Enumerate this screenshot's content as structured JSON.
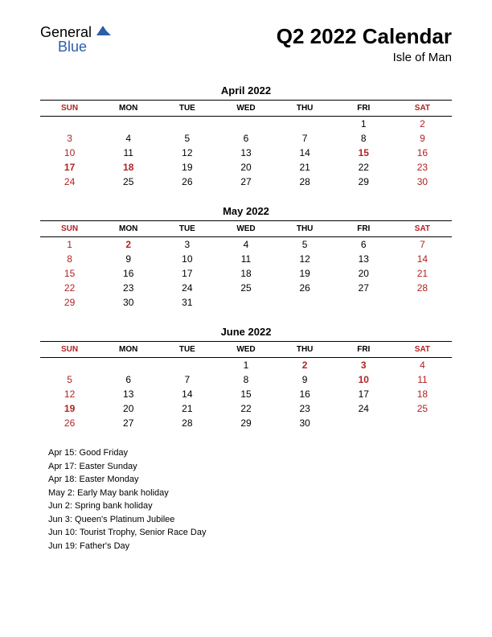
{
  "logo": {
    "general": "General",
    "blue": "Blue"
  },
  "title": "Q2 2022 Calendar",
  "subtitle": "Isle of Man",
  "day_headers": [
    "SUN",
    "MON",
    "TUE",
    "WED",
    "THU",
    "FRI",
    "SAT"
  ],
  "weekend_cols": [
    0,
    6
  ],
  "colors": {
    "weekend": "#b22222",
    "holiday": "#b22222",
    "text": "#000000",
    "background": "#ffffff",
    "logo_general": "#555555",
    "logo_blue": "#2b5da8",
    "border": "#000000"
  },
  "months": [
    {
      "name": "April 2022",
      "weeks": [
        [
          null,
          null,
          null,
          null,
          null,
          {
            "d": 1
          },
          {
            "d": 2
          }
        ],
        [
          {
            "d": 3
          },
          {
            "d": 4
          },
          {
            "d": 5
          },
          {
            "d": 6
          },
          {
            "d": 7
          },
          {
            "d": 8
          },
          {
            "d": 9
          }
        ],
        [
          {
            "d": 10
          },
          {
            "d": 11
          },
          {
            "d": 12
          },
          {
            "d": 13
          },
          {
            "d": 14
          },
          {
            "d": 15,
            "h": true
          },
          {
            "d": 16
          }
        ],
        [
          {
            "d": 17,
            "h": true
          },
          {
            "d": 18,
            "h": true
          },
          {
            "d": 19
          },
          {
            "d": 20
          },
          {
            "d": 21
          },
          {
            "d": 22
          },
          {
            "d": 23
          }
        ],
        [
          {
            "d": 24
          },
          {
            "d": 25
          },
          {
            "d": 26
          },
          {
            "d": 27
          },
          {
            "d": 28
          },
          {
            "d": 29
          },
          {
            "d": 30
          }
        ]
      ]
    },
    {
      "name": "May 2022",
      "weeks": [
        [
          {
            "d": 1
          },
          {
            "d": 2,
            "h": true
          },
          {
            "d": 3
          },
          {
            "d": 4
          },
          {
            "d": 5
          },
          {
            "d": 6
          },
          {
            "d": 7
          }
        ],
        [
          {
            "d": 8
          },
          {
            "d": 9
          },
          {
            "d": 10
          },
          {
            "d": 11
          },
          {
            "d": 12
          },
          {
            "d": 13
          },
          {
            "d": 14
          }
        ],
        [
          {
            "d": 15
          },
          {
            "d": 16
          },
          {
            "d": 17
          },
          {
            "d": 18
          },
          {
            "d": 19
          },
          {
            "d": 20
          },
          {
            "d": 21
          }
        ],
        [
          {
            "d": 22
          },
          {
            "d": 23
          },
          {
            "d": 24
          },
          {
            "d": 25
          },
          {
            "d": 26
          },
          {
            "d": 27
          },
          {
            "d": 28
          }
        ],
        [
          {
            "d": 29
          },
          {
            "d": 30
          },
          {
            "d": 31
          },
          null,
          null,
          null,
          null
        ]
      ]
    },
    {
      "name": "June 2022",
      "weeks": [
        [
          null,
          null,
          null,
          {
            "d": 1
          },
          {
            "d": 2,
            "h": true
          },
          {
            "d": 3,
            "h": true
          },
          {
            "d": 4
          }
        ],
        [
          {
            "d": 5
          },
          {
            "d": 6
          },
          {
            "d": 7
          },
          {
            "d": 8
          },
          {
            "d": 9
          },
          {
            "d": 10,
            "h": true
          },
          {
            "d": 11
          }
        ],
        [
          {
            "d": 12
          },
          {
            "d": 13
          },
          {
            "d": 14
          },
          {
            "d": 15
          },
          {
            "d": 16
          },
          {
            "d": 17
          },
          {
            "d": 18
          }
        ],
        [
          {
            "d": 19,
            "h": true
          },
          {
            "d": 20
          },
          {
            "d": 21
          },
          {
            "d": 22
          },
          {
            "d": 23
          },
          {
            "d": 24
          },
          {
            "d": 25
          }
        ],
        [
          {
            "d": 26
          },
          {
            "d": 27
          },
          {
            "d": 28
          },
          {
            "d": 29
          },
          {
            "d": 30
          },
          null,
          null
        ]
      ]
    }
  ],
  "holidays": [
    "Apr 15: Good Friday",
    "Apr 17: Easter Sunday",
    "Apr 18: Easter Monday",
    "May 2: Early May bank holiday",
    "Jun 2: Spring bank holiday",
    "Jun 3: Queen's Platinum Jubilee",
    "Jun 10: Tourist Trophy, Senior Race Day",
    "Jun 19: Father's Day"
  ]
}
